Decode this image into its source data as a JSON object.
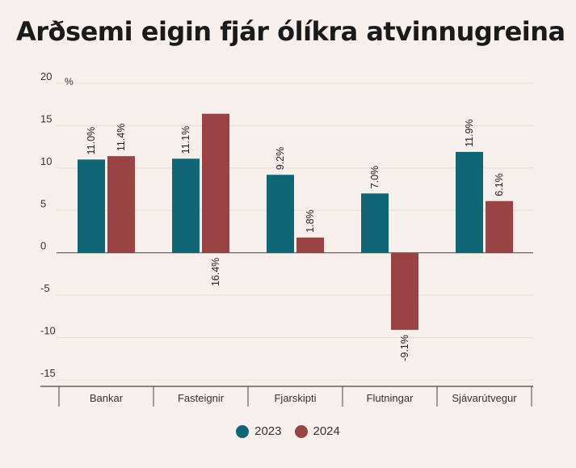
{
  "title": "Arðsemi eigin fjár ólíkra atvinnugreina",
  "colors": {
    "2023": "#0f6675",
    "2024": "#9b4244",
    "grid": "#e8dcd8",
    "axis": "#444444"
  },
  "chart_data": {
    "type": "bar",
    "unit": "%",
    "categories": [
      "Bankar",
      "Fasteignir",
      "Fjarskipti",
      "Flutningar",
      "Sjávarútvegur"
    ],
    "series": [
      {
        "name": "2023",
        "values": [
          11.0,
          11.1,
          9.2,
          7.0,
          11.9
        ],
        "labels": [
          "11.0%",
          "11.1%",
          "9.2%",
          "7.0%",
          "11.9%"
        ]
      },
      {
        "name": "2024",
        "values": [
          11.4,
          16.4,
          1.8,
          -9.1,
          6.1
        ],
        "labels": [
          "11.4%",
          "16.4%",
          "1.8%",
          "-9.1%",
          "6.1%"
        ]
      }
    ],
    "ylim": [
      -15,
      20
    ],
    "yticks": [
      20,
      15,
      10,
      5,
      0,
      -5,
      -10,
      -15
    ],
    "ytick_labels": [
      "20",
      "15",
      "10",
      "5",
      "0",
      "-5",
      "-10",
      "-15"
    ],
    "grid": true,
    "legend_position": "bottom"
  }
}
